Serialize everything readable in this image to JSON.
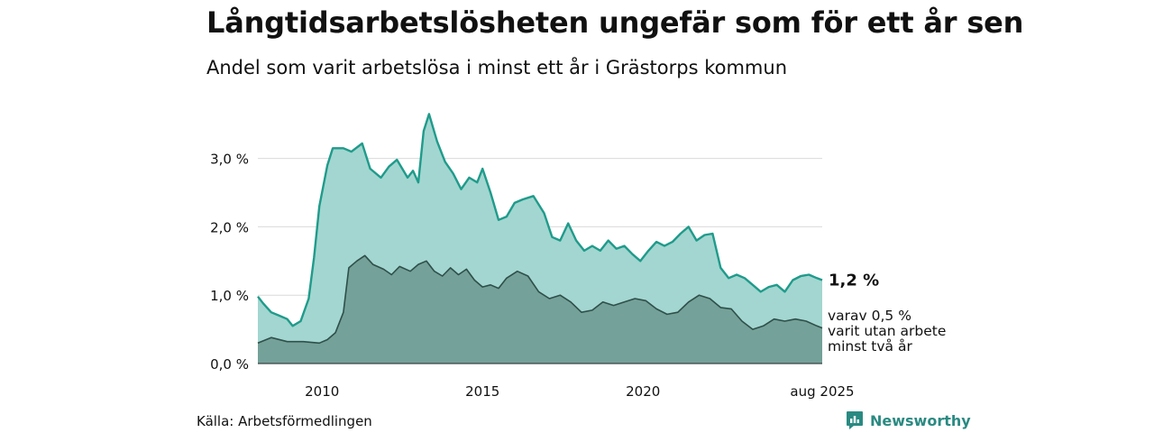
{
  "header": {
    "title": "Långtidsarbetslösheten ungefär som för ett år sen",
    "subtitle": "Andel som varit arbetslösa i minst ett år i Grästorps kommun"
  },
  "footer": {
    "source": "Källa: Arbetsförmedlingen",
    "brand": "Newsworthy"
  },
  "colors": {
    "total_line": "#1f9b8b",
    "total_fill": "#a3d6d0",
    "long_line": "#2f4f4a",
    "long_fill": "#74a199",
    "grid": "#d9d9d9"
  },
  "chart_data": {
    "type": "area",
    "title": "Långtidsarbetslösheten ungefär som för ett år sen",
    "subtitle": "Andel som varit arbetslösa i minst ett år i Grästorps kommun",
    "x_range": [
      "2008-01",
      "2025-08"
    ],
    "x_ticks": [
      {
        "date": "2010-01",
        "label": "2010"
      },
      {
        "date": "2015-01",
        "label": "2015"
      },
      {
        "date": "2020-01",
        "label": "2020"
      },
      {
        "date": "2025-08",
        "label": "aug 2025"
      }
    ],
    "y_range": [
      0,
      3.8
    ],
    "y_ticks": [
      {
        "value": 0,
        "label": "0,0 %"
      },
      {
        "value": 1,
        "label": "1,0 %"
      },
      {
        "value": 2,
        "label": "2,0 %"
      },
      {
        "value": 3,
        "label": "3,0 %"
      }
    ],
    "grid": true,
    "series": [
      {
        "name": "Arbetslösa minst ett år",
        "end_label": "1,2 %",
        "points": [
          [
            "2008-01",
            0.98
          ],
          [
            "2008-03",
            0.88
          ],
          [
            "2008-06",
            0.75
          ],
          [
            "2008-09",
            0.7
          ],
          [
            "2008-12",
            0.65
          ],
          [
            "2009-02",
            0.55
          ],
          [
            "2009-05",
            0.62
          ],
          [
            "2009-08",
            0.95
          ],
          [
            "2009-10",
            1.55
          ],
          [
            "2009-12",
            2.3
          ],
          [
            "2010-03",
            2.9
          ],
          [
            "2010-05",
            3.15
          ],
          [
            "2010-09",
            3.15
          ],
          [
            "2010-12",
            3.1
          ],
          [
            "2011-04",
            3.22
          ],
          [
            "2011-07",
            2.85
          ],
          [
            "2011-11",
            2.72
          ],
          [
            "2012-02",
            2.88
          ],
          [
            "2012-05",
            2.98
          ],
          [
            "2012-09",
            2.72
          ],
          [
            "2012-11",
            2.82
          ],
          [
            "2013-01",
            2.65
          ],
          [
            "2013-03",
            3.4
          ],
          [
            "2013-05",
            3.65
          ],
          [
            "2013-08",
            3.25
          ],
          [
            "2013-11",
            2.95
          ],
          [
            "2014-02",
            2.78
          ],
          [
            "2014-05",
            2.55
          ],
          [
            "2014-08",
            2.72
          ],
          [
            "2014-11",
            2.65
          ],
          [
            "2015-01",
            2.85
          ],
          [
            "2015-04",
            2.5
          ],
          [
            "2015-07",
            2.1
          ],
          [
            "2015-10",
            2.15
          ],
          [
            "2016-01",
            2.35
          ],
          [
            "2016-04",
            2.4
          ],
          [
            "2016-08",
            2.45
          ],
          [
            "2016-12",
            2.2
          ],
          [
            "2017-03",
            1.85
          ],
          [
            "2017-06",
            1.8
          ],
          [
            "2017-09",
            2.05
          ],
          [
            "2017-12",
            1.8
          ],
          [
            "2018-03",
            1.65
          ],
          [
            "2018-06",
            1.72
          ],
          [
            "2018-09",
            1.65
          ],
          [
            "2018-12",
            1.8
          ],
          [
            "2019-03",
            1.68
          ],
          [
            "2019-06",
            1.72
          ],
          [
            "2019-09",
            1.6
          ],
          [
            "2019-12",
            1.5
          ],
          [
            "2020-03",
            1.65
          ],
          [
            "2020-06",
            1.78
          ],
          [
            "2020-09",
            1.72
          ],
          [
            "2020-12",
            1.78
          ],
          [
            "2021-03",
            1.9
          ],
          [
            "2021-06",
            2.0
          ],
          [
            "2021-09",
            1.8
          ],
          [
            "2021-12",
            1.88
          ],
          [
            "2022-03",
            1.9
          ],
          [
            "2022-06",
            1.4
          ],
          [
            "2022-09",
            1.25
          ],
          [
            "2022-12",
            1.3
          ],
          [
            "2023-03",
            1.25
          ],
          [
            "2023-06",
            1.15
          ],
          [
            "2023-09",
            1.05
          ],
          [
            "2023-12",
            1.12
          ],
          [
            "2024-03",
            1.15
          ],
          [
            "2024-06",
            1.05
          ],
          [
            "2024-09",
            1.22
          ],
          [
            "2024-12",
            1.28
          ],
          [
            "2025-03",
            1.3
          ],
          [
            "2025-06",
            1.25
          ],
          [
            "2025-08",
            1.22
          ]
        ]
      },
      {
        "name": "varav varit utan arbete minst två år",
        "end_label_lines": [
          "varav 0,5 %",
          "varit utan arbete",
          "minst två år"
        ],
        "points": [
          [
            "2008-01",
            0.3
          ],
          [
            "2008-06",
            0.38
          ],
          [
            "2008-12",
            0.32
          ],
          [
            "2009-06",
            0.32
          ],
          [
            "2009-12",
            0.3
          ],
          [
            "2010-03",
            0.35
          ],
          [
            "2010-06",
            0.45
          ],
          [
            "2010-09",
            0.75
          ],
          [
            "2010-11",
            1.4
          ],
          [
            "2011-02",
            1.5
          ],
          [
            "2011-05",
            1.58
          ],
          [
            "2011-08",
            1.45
          ],
          [
            "2011-12",
            1.38
          ],
          [
            "2012-03",
            1.3
          ],
          [
            "2012-06",
            1.42
          ],
          [
            "2012-10",
            1.35
          ],
          [
            "2013-01",
            1.45
          ],
          [
            "2013-04",
            1.5
          ],
          [
            "2013-07",
            1.35
          ],
          [
            "2013-10",
            1.28
          ],
          [
            "2014-01",
            1.4
          ],
          [
            "2014-04",
            1.3
          ],
          [
            "2014-07",
            1.38
          ],
          [
            "2014-10",
            1.22
          ],
          [
            "2015-01",
            1.12
          ],
          [
            "2015-04",
            1.15
          ],
          [
            "2015-07",
            1.1
          ],
          [
            "2015-10",
            1.25
          ],
          [
            "2016-02",
            1.35
          ],
          [
            "2016-06",
            1.28
          ],
          [
            "2016-10",
            1.05
          ],
          [
            "2017-02",
            0.95
          ],
          [
            "2017-06",
            1.0
          ],
          [
            "2017-10",
            0.9
          ],
          [
            "2018-02",
            0.75
          ],
          [
            "2018-06",
            0.78
          ],
          [
            "2018-10",
            0.9
          ],
          [
            "2019-02",
            0.85
          ],
          [
            "2019-06",
            0.9
          ],
          [
            "2019-10",
            0.95
          ],
          [
            "2020-02",
            0.92
          ],
          [
            "2020-06",
            0.8
          ],
          [
            "2020-10",
            0.72
          ],
          [
            "2021-02",
            0.75
          ],
          [
            "2021-06",
            0.9
          ],
          [
            "2021-10",
            1.0
          ],
          [
            "2022-02",
            0.95
          ],
          [
            "2022-06",
            0.82
          ],
          [
            "2022-10",
            0.8
          ],
          [
            "2023-02",
            0.62
          ],
          [
            "2023-06",
            0.5
          ],
          [
            "2023-10",
            0.55
          ],
          [
            "2024-02",
            0.65
          ],
          [
            "2024-06",
            0.62
          ],
          [
            "2024-10",
            0.65
          ],
          [
            "2025-02",
            0.62
          ],
          [
            "2025-06",
            0.55
          ],
          [
            "2025-08",
            0.52
          ]
        ]
      }
    ]
  }
}
